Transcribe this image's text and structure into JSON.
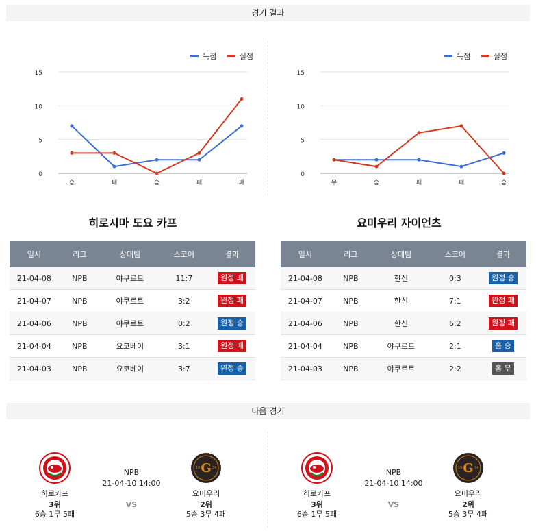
{
  "sections": {
    "results_title": "경기 결과",
    "next_title": "다음 경기"
  },
  "legend": {
    "scored": "득점",
    "conceded": "실점"
  },
  "colors": {
    "scored": "#3b6fd4",
    "conceded": "#d33a1f",
    "win_badge": "#1860a8",
    "loss_badge": "#d0121a",
    "draw_badge": "#555555",
    "table_header": "#7a8593"
  },
  "chart_data": [
    {
      "type": "line",
      "categories": [
        "승",
        "패",
        "승",
        "패",
        "패"
      ],
      "ylim": [
        0,
        15
      ],
      "yticks": [
        0,
        5,
        10,
        15
      ],
      "grid": true,
      "legend": "top-right",
      "series": [
        {
          "name": "득점",
          "values": [
            7,
            1,
            2,
            2,
            7
          ]
        },
        {
          "name": "실점",
          "values": [
            3,
            3,
            0,
            3,
            11
          ]
        }
      ]
    },
    {
      "type": "line",
      "categories": [
        "무",
        "승",
        "패",
        "패",
        "승"
      ],
      "ylim": [
        0,
        15
      ],
      "yticks": [
        0,
        5,
        10,
        15
      ],
      "grid": true,
      "legend": "top-right",
      "series": [
        {
          "name": "득점",
          "values": [
            2,
            2,
            2,
            1,
            3
          ]
        },
        {
          "name": "실점",
          "values": [
            2,
            1,
            6,
            7,
            0
          ]
        }
      ]
    }
  ],
  "teams": [
    {
      "title": "히로시마 도요 카프",
      "headers": [
        "일시",
        "리그",
        "상대팀",
        "스코어",
        "결과"
      ],
      "rows": [
        {
          "date": "21-04-08",
          "league": "NPB",
          "opp": "야쿠르트",
          "score": "11:7",
          "result": "원정 패",
          "kind": "loss"
        },
        {
          "date": "21-04-07",
          "league": "NPB",
          "opp": "야쿠르트",
          "score": "3:2",
          "result": "원정 패",
          "kind": "loss"
        },
        {
          "date": "21-04-06",
          "league": "NPB",
          "opp": "야쿠르트",
          "score": "0:2",
          "result": "원정 승",
          "kind": "win"
        },
        {
          "date": "21-04-04",
          "league": "NPB",
          "opp": "요코베이",
          "score": "3:1",
          "result": "원정 패",
          "kind": "loss"
        },
        {
          "date": "21-04-03",
          "league": "NPB",
          "opp": "요코베이",
          "score": "3:7",
          "result": "원정 승",
          "kind": "win"
        }
      ]
    },
    {
      "title": "요미우리 자이언츠",
      "headers": [
        "일시",
        "리그",
        "상대팀",
        "스코어",
        "결과"
      ],
      "rows": [
        {
          "date": "21-04-08",
          "league": "NPB",
          "opp": "한신",
          "score": "0:3",
          "result": "원정 승",
          "kind": "win"
        },
        {
          "date": "21-04-07",
          "league": "NPB",
          "opp": "한신",
          "score": "7:1",
          "result": "원정 패",
          "kind": "loss"
        },
        {
          "date": "21-04-06",
          "league": "NPB",
          "opp": "한신",
          "score": "6:2",
          "result": "원정 패",
          "kind": "loss"
        },
        {
          "date": "21-04-04",
          "league": "NPB",
          "opp": "야쿠르트",
          "score": "2:1",
          "result": "홈 승",
          "kind": "win"
        },
        {
          "date": "21-04-03",
          "league": "NPB",
          "opp": "야쿠르트",
          "score": "2:2",
          "result": "홈 무",
          "kind": "draw"
        }
      ]
    }
  ],
  "next_games": [
    {
      "league": "NPB",
      "datetime": "21-04-10 14:00",
      "vs": "VS",
      "home": {
        "name": "히로카프",
        "rank": "3위",
        "record": "6승 1무 5패",
        "logo_icon": "hiroshima-carp-logo"
      },
      "away": {
        "name": "요미우리",
        "rank": "2위",
        "record": "5승 3무 4패",
        "logo_icon": "yomiuri-giants-logo",
        "logo_text": "19 G 34"
      }
    },
    {
      "league": "NPB",
      "datetime": "21-04-10 14:00",
      "vs": "VS",
      "home": {
        "name": "히로카프",
        "rank": "3위",
        "record": "6승 1무 5패",
        "logo_icon": "hiroshima-carp-logo"
      },
      "away": {
        "name": "요미우리",
        "rank": "2위",
        "record": "5승 3무 4패",
        "logo_icon": "yomiuri-giants-logo",
        "logo_text": "19 G 34"
      }
    }
  ]
}
